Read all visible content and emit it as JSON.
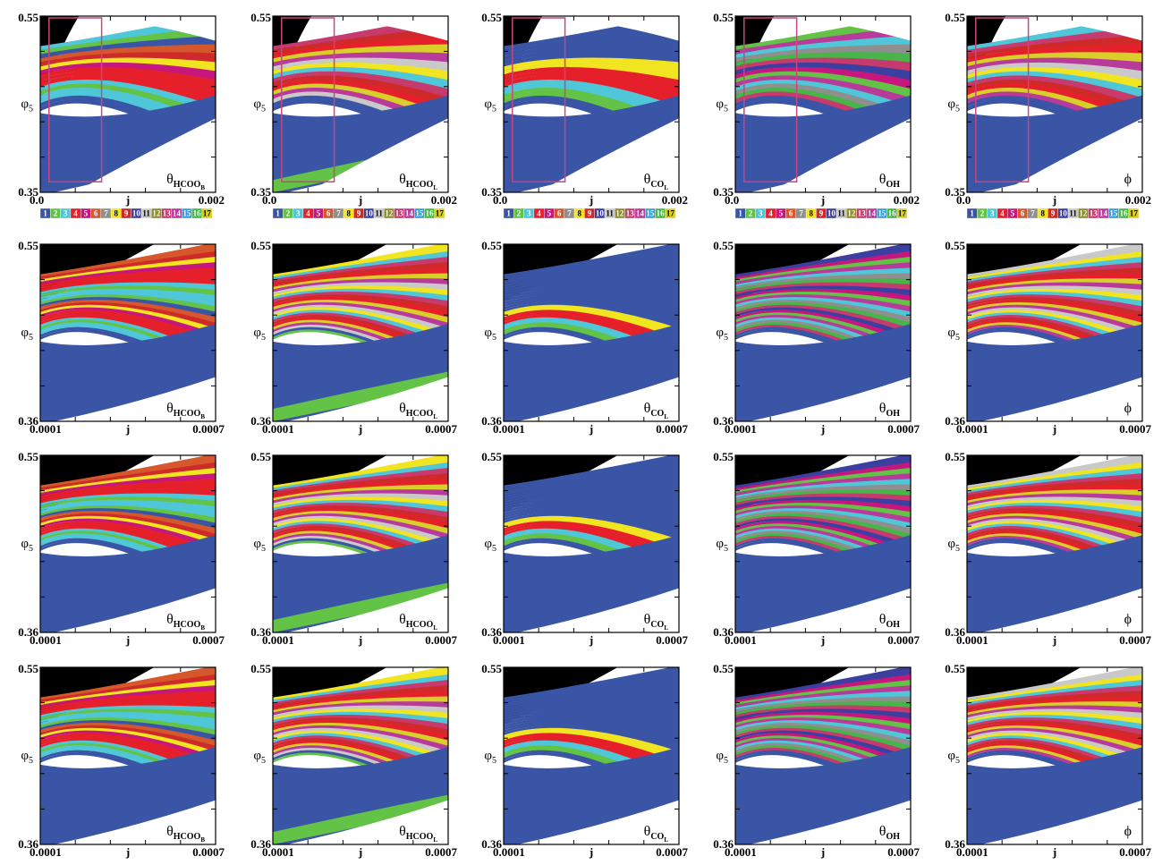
{
  "figure": {
    "y_label_main": "φ",
    "y_label_sub": "5",
    "x_label": "j",
    "colorbar_labels": [
      "1",
      "2",
      "3",
      "4",
      "5",
      "6",
      "7",
      "8",
      "9",
      "10",
      "11",
      "12",
      "13",
      "14",
      "15",
      "16",
      "17"
    ],
    "colorbar_colors": [
      "#3b55a6",
      "#62c346",
      "#4fc7d8",
      "#e6202b",
      "#c7177e",
      "#d6572b",
      "#8f8f8f",
      "#f0e520",
      "#cf2a2a",
      "#3b3fa0",
      "#c9c9c9",
      "#8c8c2a",
      "#c73a6e",
      "#b83a9b",
      "#3a9ed6",
      "#47b54a",
      "#d8cf2a"
    ],
    "columns": [
      {
        "label": "θ",
        "sub": "HCOO",
        "subsub": "B"
      },
      {
        "label": "θ",
        "sub": "HCOO",
        "subsub": "L"
      },
      {
        "label": "θ",
        "sub": "CO",
        "subsub": "L"
      },
      {
        "label": "θ",
        "sub": "OH",
        "subsub": ""
      },
      {
        "label": "ϕ",
        "sub": "",
        "subsub": ""
      }
    ],
    "panel_type_rows": [
      "full-range",
      "zoom",
      "zoom",
      "zoom"
    ],
    "white_region_color": "#ffffff",
    "black_region_color": "#000000"
  },
  "chart_data": [
    {
      "type": "heatmap",
      "row": 1,
      "xlim": [
        0.0,
        0.002
      ],
      "ylim": [
        0.35,
        0.55
      ],
      "x_ticks": [
        "0.0",
        "j",
        "0.002"
      ],
      "y_ticks": [
        "0.55",
        "0.35"
      ],
      "colorbar": true,
      "inset_box": {
        "x": [
          0.0001,
          0.0007
        ],
        "y": [
          0.36,
          0.55
        ]
      }
    },
    {
      "type": "heatmap",
      "row": 2,
      "xlim": [
        0.0001,
        0.0007
      ],
      "ylim": [
        0.36,
        0.55
      ],
      "x_ticks": [
        "0.0001",
        "j",
        "0.0007"
      ],
      "y_ticks": [
        "0.55",
        "0.36"
      ],
      "colorbar": false
    },
    {
      "type": "heatmap",
      "row": 3,
      "xlim": [
        0.0001,
        0.0007
      ],
      "ylim": [
        0.36,
        0.55
      ],
      "x_ticks": [
        "0.0001",
        "j",
        "0.0007"
      ],
      "y_ticks": [
        "0.55",
        "0.36"
      ],
      "colorbar": false
    },
    {
      "type": "heatmap",
      "row": 4,
      "xlim": [
        0.0001,
        0.0007
      ],
      "ylim": [
        0.36,
        0.55
      ],
      "x_ticks": [
        "0.0001",
        "j",
        "0.0007"
      ],
      "y_ticks": [
        "0.55",
        "0.36"
      ],
      "colorbar": false
    }
  ]
}
